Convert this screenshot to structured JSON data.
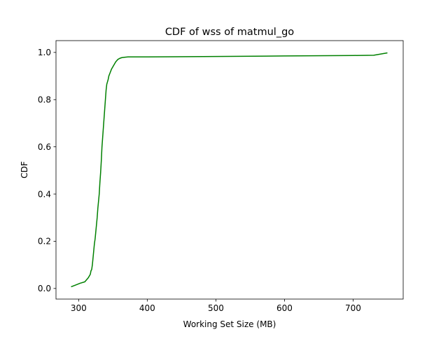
{
  "chart_data": {
    "type": "line",
    "title": "CDF of wss of matmul_go",
    "xlabel": "Working Set Size (MB)",
    "ylabel": "CDF",
    "xlim": [
      267,
      773
    ],
    "ylim": [
      -0.045,
      1.05
    ],
    "xticks": [
      300,
      400,
      500,
      600,
      700
    ],
    "yticks": [
      0.0,
      0.2,
      0.4,
      0.6,
      0.8,
      1.0
    ],
    "xtick_labels": [
      "300",
      "400",
      "500",
      "600",
      "700"
    ],
    "ytick_labels": [
      "0.0",
      "0.2",
      "0.4",
      "0.6",
      "0.8",
      "1.0"
    ],
    "grid": false,
    "legend": null,
    "series": [
      {
        "color": "#008000",
        "x": [
          289,
          296,
          302,
          309,
          314,
          317,
          318,
          319,
          320,
          321,
          322,
          323,
          324,
          325,
          326,
          327,
          328,
          329,
          330,
          331,
          332,
          333,
          334,
          335,
          336,
          337,
          338,
          339,
          340,
          341,
          342,
          343,
          344,
          346,
          348,
          350,
          352,
          354,
          357,
          360,
          363,
          368,
          372,
          400,
          500,
          600,
          700,
          730,
          750
        ],
        "y": [
          0.007,
          0.015,
          0.022,
          0.028,
          0.045,
          0.06,
          0.075,
          0.08,
          0.1,
          0.13,
          0.16,
          0.19,
          0.21,
          0.24,
          0.27,
          0.3,
          0.34,
          0.37,
          0.4,
          0.45,
          0.49,
          0.54,
          0.6,
          0.64,
          0.68,
          0.72,
          0.76,
          0.8,
          0.84,
          0.865,
          0.875,
          0.885,
          0.9,
          0.915,
          0.93,
          0.94,
          0.95,
          0.96,
          0.97,
          0.975,
          0.978,
          0.98,
          0.981,
          0.981,
          0.983,
          0.985,
          0.987,
          0.988,
          0.998
        ]
      }
    ]
  }
}
